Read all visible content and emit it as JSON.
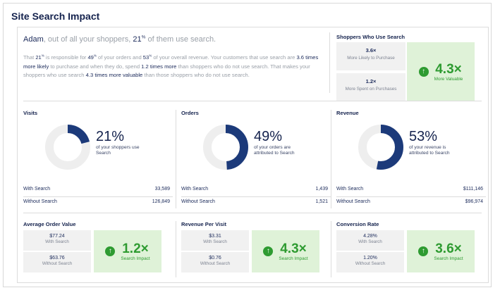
{
  "title": "Site Search Impact",
  "intro": {
    "name": "Adam",
    "headline_mid": ", out of all your shoppers, ",
    "pct": "21",
    "headline_end": " of them use search.",
    "p_that": "That ",
    "p_pct": "21",
    "p_a": " is responsible for ",
    "p_orders": "49",
    "p_b": " of your orders and ",
    "p_rev": "53",
    "p_c": " of your overall revenue. Your customers that use search are ",
    "p_likely": "3.6 times more likely",
    "p_d": " to purchase and when they do, spend ",
    "p_spend": "1.2 times more",
    "p_e": " than shoppers who do not use search. That makes your shoppers who use search ",
    "p_valuable": "4.3 times more valuable",
    "p_f": " than those shoppers who do not use search."
  },
  "shoppers": {
    "title": "Shoppers Who Use Search",
    "likely_value": "3.6×",
    "likely_label": "More Likely to Purchase",
    "spent_value": "1.2×",
    "spent_label": "More Spent on Purchases",
    "big_value": "4.3×",
    "big_label": "More Valuable",
    "icon": "arrow-up-circle-icon"
  },
  "visits": {
    "title": "Visits",
    "percent_value": 21,
    "big": "21%",
    "desc": "of your shoppers use Search",
    "with_label": "With Search",
    "with_value": "33,589",
    "without_label": "Without Search",
    "without_value": "126,849"
  },
  "orders": {
    "title": "Orders",
    "percent_value": 49,
    "big": "49%",
    "desc": "of your orders are attributed to Search",
    "with_label": "With Search",
    "with_value": "1,439",
    "without_label": "Without Search",
    "without_value": "1,521"
  },
  "revenue": {
    "title": "Revenue",
    "percent_value": 53,
    "big": "53%",
    "desc": "of your revenue is attributed to Search",
    "with_label": "With Search",
    "with_value": "$111,146",
    "without_label": "Without Search",
    "without_value": "$96,974"
  },
  "aov": {
    "title": "Average Order Value",
    "with_value": "$77.24",
    "with_label": "With Search",
    "without_value": "$63.76",
    "without_label": "Without Search",
    "impact_value": "1.2×",
    "impact_label": "Search Impact"
  },
  "rpv": {
    "title": "Revenue Per Visit",
    "with_value": "$3.31",
    "with_label": "With Search",
    "without_value": "$0.76",
    "without_label": "Without Search",
    "impact_value": "4.3×",
    "impact_label": "Search Impact"
  },
  "cr": {
    "title": "Conversion Rate",
    "with_value": "4.28%",
    "with_label": "With Search",
    "without_value": "1.20%",
    "without_label": "Without Search",
    "impact_value": "3.6×",
    "impact_label": "Search Impact"
  },
  "colors": {
    "donut_fill": "#1c3a7a",
    "donut_track": "#eeeeee",
    "impact_green": "#2e9b31",
    "impact_bg": "#dff2d8"
  }
}
